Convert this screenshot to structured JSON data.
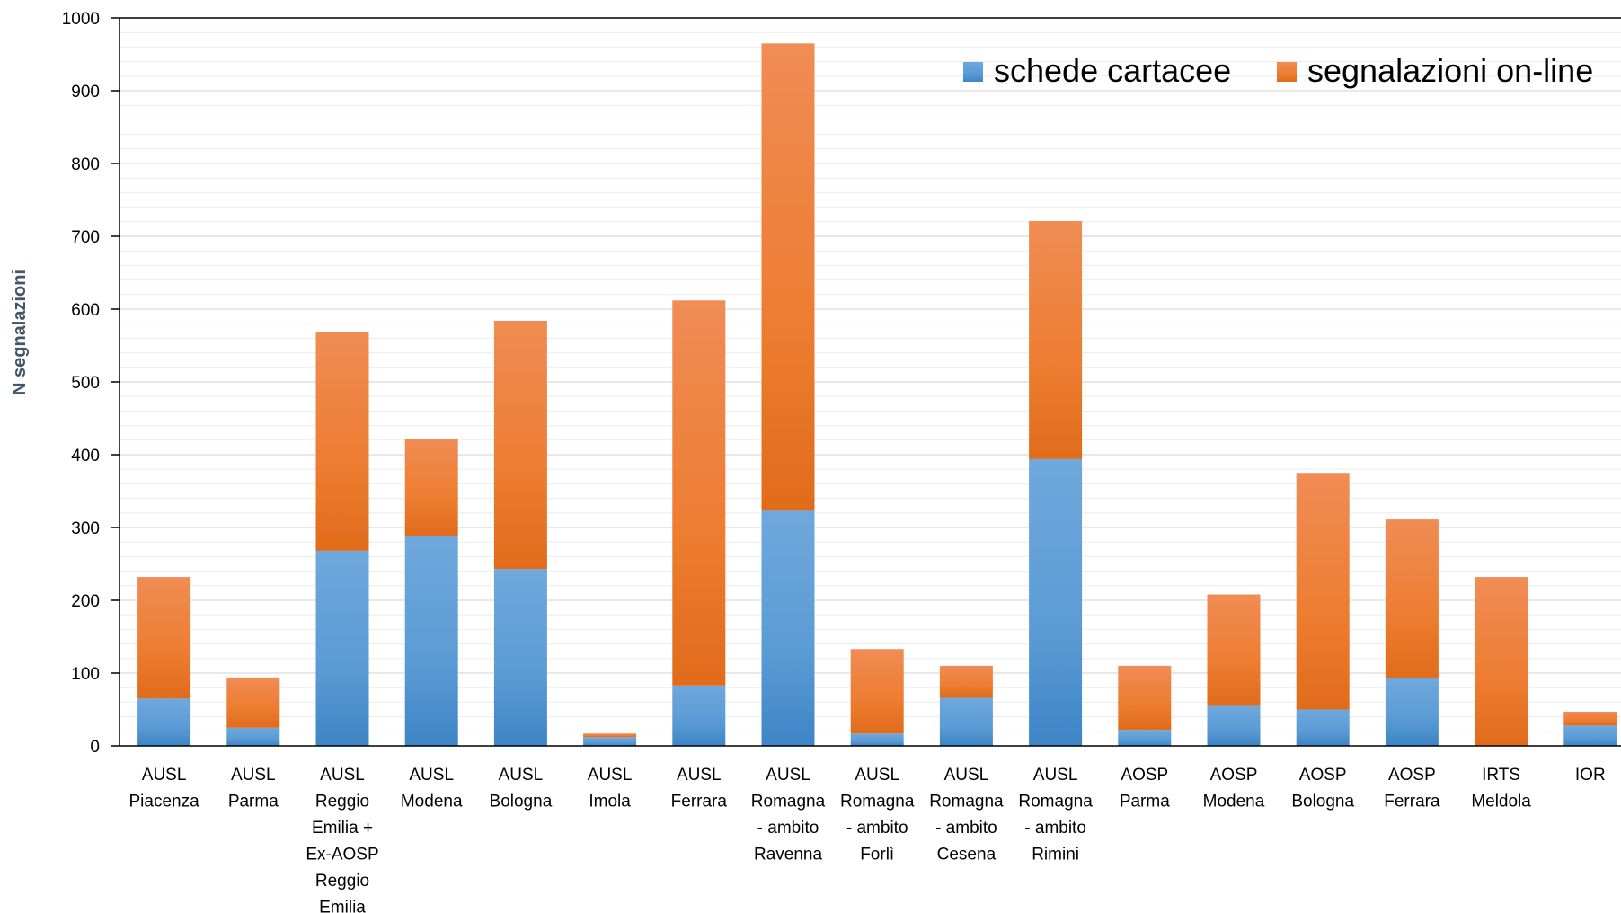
{
  "chart_data": {
    "type": "bar",
    "stacked": true,
    "categories": [
      [
        "AUSL",
        "Piacenza"
      ],
      [
        "AUSL",
        "Parma"
      ],
      [
        "AUSL",
        "Reggio",
        "Emilia +",
        "Ex-AOSP",
        "Reggio",
        "Emilia"
      ],
      [
        "AUSL",
        "Modena"
      ],
      [
        "AUSL",
        "Bologna"
      ],
      [
        "AUSL",
        "Imola"
      ],
      [
        "AUSL",
        "Ferrara"
      ],
      [
        "AUSL",
        "Romagna",
        "- ambito",
        "Ravenna"
      ],
      [
        "AUSL",
        "Romagna",
        "- ambito",
        "Forlì"
      ],
      [
        "AUSL",
        "Romagna",
        "- ambito",
        "Cesena"
      ],
      [
        "AUSL",
        "Romagna",
        "- ambito",
        "Rimini"
      ],
      [
        "AOSP",
        "Parma"
      ],
      [
        "AOSP",
        "Modena"
      ],
      [
        "AOSP",
        "Bologna"
      ],
      [
        "AOSP",
        "Ferrara"
      ],
      [
        "IRTS",
        "Meldola"
      ],
      [
        "IOR"
      ]
    ],
    "series": [
      {
        "name": "schede cartacee",
        "color": "#5b9bd5",
        "values": [
          65,
          25,
          268,
          288,
          243,
          12,
          83,
          323,
          17,
          66,
          394,
          22,
          55,
          50,
          93,
          0,
          28
        ]
      },
      {
        "name": "segnalazioni on-line",
        "color": "#ed7d31",
        "values": [
          167,
          69,
          300,
          134,
          341,
          5,
          529,
          642,
          116,
          44,
          327,
          88,
          153,
          325,
          218,
          232,
          19
        ]
      }
    ],
    "ylabel": "N segnalazioni",
    "xlabel": "",
    "ylim": [
      0,
      1000
    ],
    "yticks": [
      "0",
      "100",
      "200",
      "300",
      "400",
      "500",
      "600",
      "700",
      "800",
      "900",
      "1000"
    ],
    "ytick_values": [
      0,
      100,
      200,
      300,
      400,
      500,
      600,
      700,
      800,
      900,
      1000
    ],
    "grid": "horizontal minor",
    "legend_position": "top-right"
  }
}
